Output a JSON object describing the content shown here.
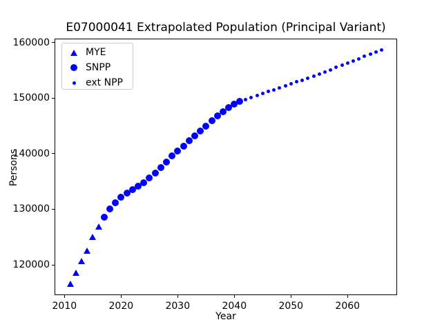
{
  "title": "E07000041 Extrapolated Population (Principal Variant)",
  "chart_data": {
    "type": "scatter",
    "title": "E07000041 Extrapolated Population (Principal Variant)",
    "xlabel": "Year",
    "ylabel": "Persons",
    "xlim": [
      2008.25,
      2068.75
    ],
    "ylim": [
      114550,
      160700
    ],
    "x_ticks": [
      2010,
      2020,
      2030,
      2040,
      2050,
      2060
    ],
    "y_ticks": [
      120000,
      130000,
      140000,
      150000,
      160000
    ],
    "grid": false,
    "legend_position": "upper-left",
    "marker_color": "#0000ff",
    "series": [
      {
        "name": "MYE",
        "marker": "triangle",
        "marker_size": 10,
        "x": [
          2011,
          2012,
          2013,
          2014,
          2015,
          2016
        ],
        "values": [
          116650,
          118600,
          120650,
          122600,
          125050,
          126950
        ]
      },
      {
        "name": "SNPP",
        "marker": "circle",
        "marker_size": 9,
        "x": [
          2017,
          2018,
          2019,
          2020,
          2021,
          2022,
          2023,
          2024,
          2025,
          2026,
          2027,
          2028,
          2029,
          2030,
          2031,
          2032,
          2033,
          2034,
          2035,
          2036,
          2037,
          2038,
          2039,
          2040,
          2041
        ],
        "values": [
          128550,
          130000,
          131150,
          132150,
          132950,
          133500,
          134100,
          134800,
          135600,
          136500,
          137500,
          138550,
          139600,
          140500,
          141400,
          142300,
          143200,
          144100,
          145000,
          145900,
          146800,
          147600,
          148300,
          148900,
          149350
        ]
      },
      {
        "name": "ext NPP",
        "marker": "dot",
        "marker_size": 5,
        "x": [
          2042,
          2043,
          2044,
          2045,
          2046,
          2047,
          2048,
          2049,
          2050,
          2051,
          2052,
          2053,
          2054,
          2055,
          2056,
          2057,
          2058,
          2059,
          2060,
          2061,
          2062,
          2063,
          2064,
          2065,
          2066
        ],
        "values": [
          149750,
          150100,
          150450,
          150800,
          151150,
          151500,
          151850,
          152200,
          152550,
          152900,
          153250,
          153600,
          153950,
          154300,
          154700,
          155100,
          155500,
          155900,
          156300,
          156700,
          157100,
          157500,
          157900,
          158250,
          158600
        ]
      }
    ]
  },
  "legend": {
    "items": [
      {
        "label": "MYE",
        "marker": "triangle"
      },
      {
        "label": "SNPP",
        "marker": "circle"
      },
      {
        "label": "ext NPP",
        "marker": "dot"
      }
    ]
  }
}
